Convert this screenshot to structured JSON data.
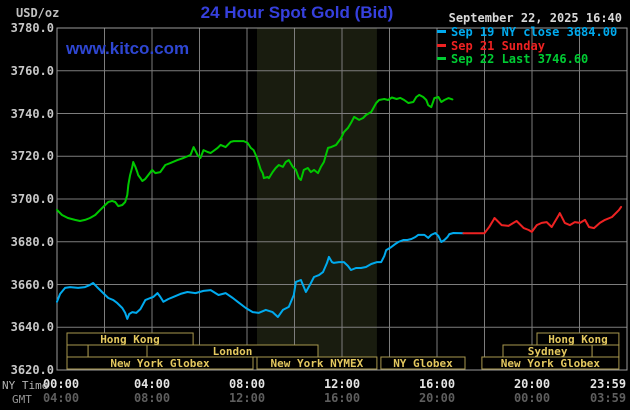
{
  "header": {
    "unit_label": "USD/oz",
    "title": "24 Hour Spot Gold (Bid)",
    "datetime": "September 22, 2025 16:40",
    "watermark": "www.kitco.com"
  },
  "legend": [
    {
      "label": "Sep 19 NY close 3684.00",
      "color": "#00aaee"
    },
    {
      "label": "Sep 21 Sunday",
      "color": "#ee2222"
    },
    {
      "label": "Sep 22 Last 3746.60",
      "color": "#00cc33"
    }
  ],
  "axes": {
    "ny_time_label": "NY Time",
    "gmt_label": "GMT",
    "tick_hours": [
      0,
      4,
      8,
      12,
      16,
      20,
      23.983
    ],
    "ny_ticks": [
      "00:00",
      "04:00",
      "08:00",
      "12:00",
      "16:00",
      "20:00",
      "23:59"
    ],
    "gmt_ticks": [
      "04:00",
      "08:00",
      "12:00",
      "16:00",
      "20:00",
      "00:00",
      "03:59"
    ],
    "y_tick_labels": [
      "3780.0",
      "3760.0",
      "3740.0",
      "3720.0",
      "3700.0",
      "3680.0",
      "3660.0",
      "3640.0",
      "3620.0"
    ]
  },
  "colors": {
    "background": "#000000",
    "grid": "#7d7d7d",
    "border": "#9a9a9a",
    "nymex_band": "#191c0f",
    "session_border": "#a8974e",
    "session_text": "#e5c95f",
    "title_blue": "#3640dd",
    "watermark_blue": "#2e46d2"
  },
  "market_sessions": {
    "rows": [
      [
        {
          "label": "Hong Kong",
          "start": 0.42,
          "end": 5.73
        },
        {
          "label": "Hong Kong",
          "start": 20.21,
          "end": 23.66
        }
      ],
      [
        {
          "label": "",
          "start": 0.42,
          "end": 1.31
        },
        {
          "label": "",
          "start": 1.31,
          "end": 3.79
        },
        {
          "label": "London",
          "start": 3.79,
          "end": 10.99
        },
        {
          "label": "Sydney",
          "start": 18.78,
          "end": 22.53
        },
        {
          "label": "",
          "start": 22.53,
          "end": 23.66
        }
      ],
      [
        {
          "label": "New York Globex",
          "start": 0.42,
          "end": 8.25
        },
        {
          "label": "New York NYMEX",
          "start": 8.42,
          "end": 13.47
        },
        {
          "label": "NY Globex",
          "start": 13.64,
          "end": 17.18
        },
        {
          "label": "New York Globex",
          "start": 17.89,
          "end": 23.66
        }
      ]
    ]
  },
  "chart_data": {
    "type": "line",
    "title": "24 Hour Spot Gold (Bid)",
    "xlabel": "NY Time (hours 00:00-23:59)",
    "ylabel": "USD/oz",
    "ylim": [
      3620,
      3780
    ],
    "xlim_hours": [
      0,
      24
    ],
    "y_gridline_step": 20,
    "x_gridline_step_hours": 2,
    "grid": true,
    "legend_position": "top-right",
    "nymex_band_hours": [
      8.42,
      13.47
    ],
    "series": [
      {
        "id": "sep19-ny-close",
        "name": "Sep 19 NY close 3684.00",
        "color": "#00aaee",
        "points": [
          [
            0,
            3651.9
          ],
          [
            0.13,
            3655.6
          ],
          [
            0.34,
            3658.4
          ],
          [
            0.55,
            3658.8
          ],
          [
            0.89,
            3658.4
          ],
          [
            1.18,
            3658.8
          ],
          [
            1.39,
            3659.8
          ],
          [
            1.52,
            3660.7
          ],
          [
            1.69,
            3658.8
          ],
          [
            1.9,
            3656.5
          ],
          [
            2.16,
            3653.7
          ],
          [
            2.37,
            3652.7
          ],
          [
            2.54,
            3651.3
          ],
          [
            2.75,
            3649.0
          ],
          [
            2.87,
            3646.7
          ],
          [
            2.96,
            3643.9
          ],
          [
            3.04,
            3646.2
          ],
          [
            3.17,
            3647.1
          ],
          [
            3.34,
            3646.7
          ],
          [
            3.51,
            3648.5
          ],
          [
            3.72,
            3652.7
          ],
          [
            3.93,
            3653.7
          ],
          [
            4.06,
            3654.2
          ],
          [
            4.23,
            3656.0
          ],
          [
            4.35,
            3654.2
          ],
          [
            4.48,
            3651.9
          ],
          [
            4.69,
            3653.2
          ],
          [
            4.9,
            3654.2
          ],
          [
            5.2,
            3655.6
          ],
          [
            5.49,
            3656.5
          ],
          [
            5.83,
            3656.0
          ],
          [
            6.17,
            3657.0
          ],
          [
            6.47,
            3657.4
          ],
          [
            6.8,
            3655.1
          ],
          [
            7.1,
            3656.0
          ],
          [
            7.4,
            3653.7
          ],
          [
            7.61,
            3651.9
          ],
          [
            7.95,
            3649.0
          ],
          [
            8.24,
            3647.1
          ],
          [
            8.49,
            3646.7
          ],
          [
            8.79,
            3648.1
          ],
          [
            9.08,
            3647.1
          ],
          [
            9.3,
            3644.8
          ],
          [
            9.51,
            3648.1
          ],
          [
            9.76,
            3649.5
          ],
          [
            9.97,
            3655.1
          ],
          [
            10.06,
            3661.2
          ],
          [
            10.27,
            3662.1
          ],
          [
            10.48,
            3656.5
          ],
          [
            10.65,
            3659.8
          ],
          [
            10.82,
            3663.5
          ],
          [
            11.03,
            3664.4
          ],
          [
            11.2,
            3665.8
          ],
          [
            11.37,
            3670.1
          ],
          [
            11.45,
            3672.9
          ],
          [
            11.58,
            3670.5
          ],
          [
            11.66,
            3670.1
          ],
          [
            11.87,
            3670.5
          ],
          [
            12.08,
            3670.5
          ],
          [
            12.25,
            3668.7
          ],
          [
            12.38,
            3666.8
          ],
          [
            12.59,
            3667.7
          ],
          [
            12.8,
            3667.7
          ],
          [
            13.01,
            3668.2
          ],
          [
            13.23,
            3669.6
          ],
          [
            13.48,
            3670.5
          ],
          [
            13.65,
            3670.5
          ],
          [
            13.78,
            3673.3
          ],
          [
            13.86,
            3676.1
          ],
          [
            14.07,
            3677.5
          ],
          [
            14.24,
            3678.9
          ],
          [
            14.37,
            3679.9
          ],
          [
            14.58,
            3680.8
          ],
          [
            14.75,
            3680.8
          ],
          [
            14.92,
            3681.3
          ],
          [
            15.09,
            3682.2
          ],
          [
            15.21,
            3683.2
          ],
          [
            15.47,
            3683.2
          ],
          [
            15.63,
            3681.8
          ],
          [
            15.76,
            3683.2
          ],
          [
            15.93,
            3684.1
          ],
          [
            16.06,
            3682.7
          ],
          [
            16.18,
            3679.9
          ],
          [
            16.31,
            3680.8
          ],
          [
            16.44,
            3682.2
          ],
          [
            16.52,
            3683.6
          ],
          [
            16.69,
            3684.1
          ],
          [
            17.11,
            3684.0
          ]
        ]
      },
      {
        "id": "sep21-sunday",
        "name": "Sep 21 Sunday",
        "color": "#ee2222",
        "points": [
          [
            17.11,
            3684.0
          ],
          [
            17.5,
            3684.0
          ],
          [
            18.0,
            3684.0
          ],
          [
            18.2,
            3687.0
          ],
          [
            18.38,
            3690.2
          ],
          [
            18.42,
            3691.1
          ],
          [
            18.72,
            3687.8
          ],
          [
            19.01,
            3687.4
          ],
          [
            19.27,
            3689.2
          ],
          [
            19.35,
            3689.7
          ],
          [
            19.65,
            3686.4
          ],
          [
            19.86,
            3685.5
          ],
          [
            19.99,
            3684.6
          ],
          [
            20.2,
            3687.8
          ],
          [
            20.41,
            3688.8
          ],
          [
            20.62,
            3689.2
          ],
          [
            20.83,
            3686.9
          ],
          [
            21.13,
            3692.5
          ],
          [
            21.17,
            3693.4
          ],
          [
            21.38,
            3688.8
          ],
          [
            21.59,
            3687.8
          ],
          [
            21.8,
            3689.2
          ],
          [
            22.02,
            3688.8
          ],
          [
            22.23,
            3690.2
          ],
          [
            22.4,
            3686.9
          ],
          [
            22.61,
            3686.4
          ],
          [
            22.86,
            3688.8
          ],
          [
            23.07,
            3690.2
          ],
          [
            23.37,
            3691.6
          ],
          [
            23.66,
            3694.8
          ],
          [
            23.75,
            3696.3
          ]
        ]
      },
      {
        "id": "sep22-current",
        "name": "Sep 22 Last 3746.60",
        "color": "#00c800",
        "points": [
          [
            0,
            3694.9
          ],
          [
            0.21,
            3692.5
          ],
          [
            0.46,
            3691.1
          ],
          [
            0.76,
            3690.2
          ],
          [
            0.97,
            3689.7
          ],
          [
            1.18,
            3690.2
          ],
          [
            1.39,
            3691.1
          ],
          [
            1.61,
            3692.5
          ],
          [
            1.82,
            3694.9
          ],
          [
            2.03,
            3697.2
          ],
          [
            2.16,
            3698.6
          ],
          [
            2.32,
            3699.1
          ],
          [
            2.45,
            3698.6
          ],
          [
            2.58,
            3696.7
          ],
          [
            2.75,
            3697.2
          ],
          [
            2.87,
            3698.6
          ],
          [
            2.96,
            3701.9
          ],
          [
            3.0,
            3706.5
          ],
          [
            3.08,
            3711.2
          ],
          [
            3.17,
            3715.0
          ],
          [
            3.21,
            3717.3
          ],
          [
            3.3,
            3715.0
          ],
          [
            3.38,
            3712.6
          ],
          [
            3.42,
            3711.2
          ],
          [
            3.51,
            3709.8
          ],
          [
            3.59,
            3708.4
          ],
          [
            3.72,
            3709.4
          ],
          [
            3.84,
            3711.2
          ],
          [
            4.01,
            3713.6
          ],
          [
            4.14,
            3712.1
          ],
          [
            4.35,
            3712.6
          ],
          [
            4.56,
            3715.9
          ],
          [
            4.77,
            3716.8
          ],
          [
            5.07,
            3718.2
          ],
          [
            5.32,
            3719.2
          ],
          [
            5.62,
            3720.6
          ],
          [
            5.75,
            3724.3
          ],
          [
            5.92,
            3720.6
          ],
          [
            6.04,
            3719.2
          ],
          [
            6.17,
            3722.9
          ],
          [
            6.34,
            3722.0
          ],
          [
            6.47,
            3721.5
          ],
          [
            6.76,
            3723.9
          ],
          [
            6.89,
            3725.3
          ],
          [
            7.1,
            3724.3
          ],
          [
            7.31,
            3726.7
          ],
          [
            7.44,
            3727.1
          ],
          [
            7.86,
            3727.1
          ],
          [
            8.03,
            3726.2
          ],
          [
            8.16,
            3723.9
          ],
          [
            8.28,
            3722.9
          ],
          [
            8.41,
            3719.6
          ],
          [
            8.58,
            3713.6
          ],
          [
            8.66,
            3712.1
          ],
          [
            8.71,
            3709.8
          ],
          [
            8.87,
            3710.3
          ],
          [
            8.92,
            3709.8
          ],
          [
            9.08,
            3712.6
          ],
          [
            9.21,
            3714.5
          ],
          [
            9.34,
            3715.9
          ],
          [
            9.51,
            3715.0
          ],
          [
            9.63,
            3717.3
          ],
          [
            9.76,
            3718.2
          ],
          [
            9.93,
            3715.0
          ],
          [
            10.06,
            3713.6
          ],
          [
            10.18,
            3709.8
          ],
          [
            10.27,
            3708.9
          ],
          [
            10.39,
            3713.6
          ],
          [
            10.56,
            3714.5
          ],
          [
            10.69,
            3712.6
          ],
          [
            10.82,
            3713.6
          ],
          [
            10.99,
            3712.1
          ],
          [
            11.11,
            3715.0
          ],
          [
            11.24,
            3717.3
          ],
          [
            11.41,
            3723.9
          ],
          [
            11.54,
            3724.3
          ],
          [
            11.75,
            3725.3
          ],
          [
            11.96,
            3728.5
          ],
          [
            12.08,
            3731.3
          ],
          [
            12.25,
            3733.2
          ],
          [
            12.38,
            3735.6
          ],
          [
            12.51,
            3738.4
          ],
          [
            12.72,
            3737.0
          ],
          [
            12.89,
            3737.9
          ],
          [
            13.01,
            3739.3
          ],
          [
            13.23,
            3740.7
          ],
          [
            13.44,
            3744.9
          ],
          [
            13.56,
            3746.3
          ],
          [
            13.78,
            3746.8
          ],
          [
            13.94,
            3746.3
          ],
          [
            14.1,
            3747.5
          ],
          [
            14.3,
            3746.8
          ],
          [
            14.45,
            3747.3
          ],
          [
            14.62,
            3746.3
          ],
          [
            14.79,
            3744.9
          ],
          [
            15.0,
            3745.4
          ],
          [
            15.13,
            3747.7
          ],
          [
            15.25,
            3748.7
          ],
          [
            15.42,
            3747.7
          ],
          [
            15.55,
            3746.3
          ],
          [
            15.63,
            3743.9
          ],
          [
            15.76,
            3743.0
          ],
          [
            15.89,
            3747.2
          ],
          [
            16.06,
            3747.7
          ],
          [
            16.18,
            3745.4
          ],
          [
            16.31,
            3746.3
          ],
          [
            16.48,
            3747.2
          ],
          [
            16.65,
            3746.6
          ]
        ]
      }
    ]
  }
}
